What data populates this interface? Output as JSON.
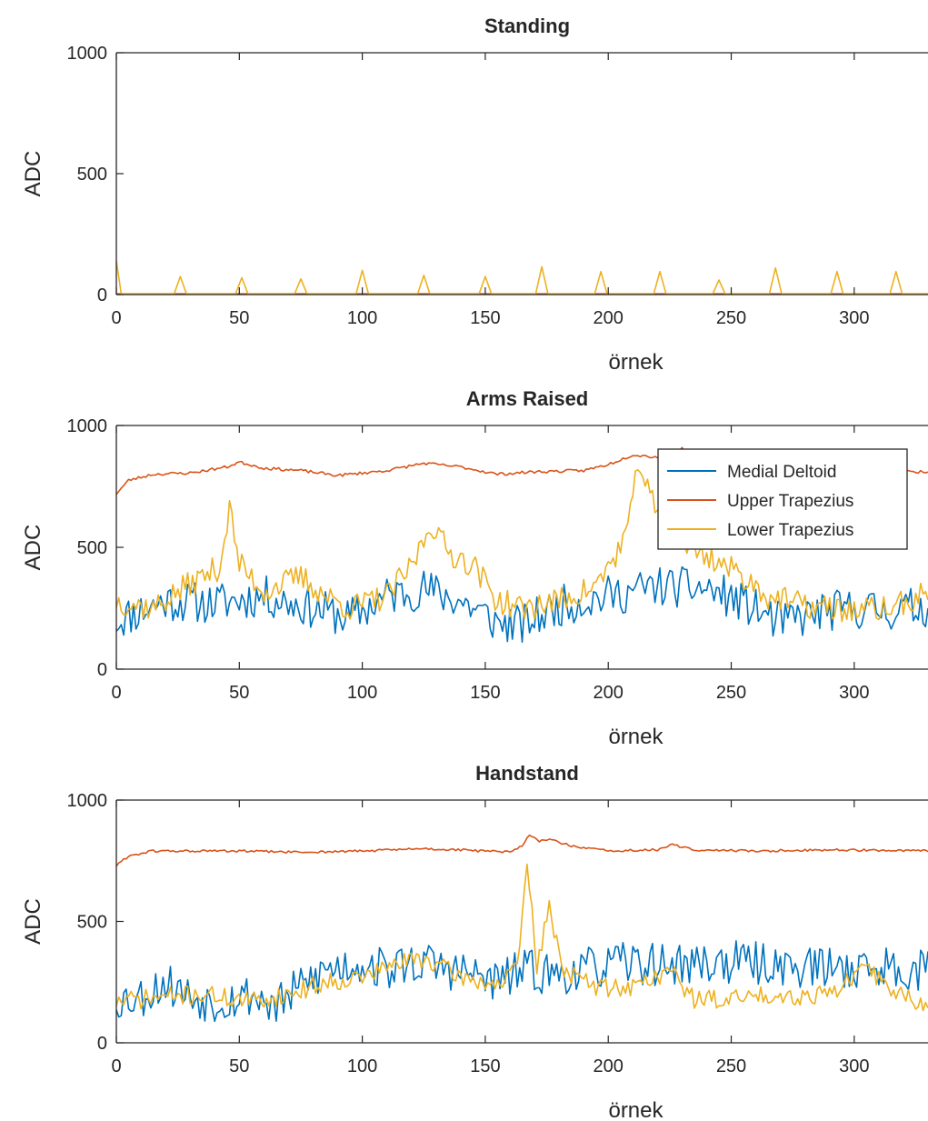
{
  "colors": {
    "medial_deltoid": "#0072BD",
    "upper_trapezius": "#D95319",
    "lower_trapezius": "#EDB120",
    "axis": "#262626"
  },
  "legend": {
    "placement": "top-right of second panel",
    "entries": [
      "Medial Deltoid",
      "Upper Trapezius",
      "Lower Trapezius"
    ]
  },
  "chart_data": [
    {
      "type": "line",
      "title": "Standing",
      "xlabel": "örnek",
      "ylabel": "ADC",
      "xlim": [
        0,
        330
      ],
      "ylim": [
        0,
        1000
      ],
      "xticks": [
        "0",
        "50",
        "100",
        "150",
        "200",
        "250",
        "300"
      ],
      "yticks": [
        "0",
        "500",
        "1000"
      ],
      "grid": false,
      "series": [
        {
          "name": "Medial Deltoid",
          "color": "#0072BD",
          "kind": "flat",
          "level": 2
        },
        {
          "name": "Upper Trapezius",
          "color": "#D95319",
          "kind": "flat",
          "level": 3
        },
        {
          "name": "Lower Trapezius",
          "color": "#EDB120",
          "kind": "spikes",
          "base": 3,
          "start_value": 140,
          "peaks": [
            [
              26,
              75
            ],
            [
              51,
              70
            ],
            [
              75,
              65
            ],
            [
              100,
              100
            ],
            [
              125,
              80
            ],
            [
              150,
              75
            ],
            [
              173,
              115
            ],
            [
              197,
              95
            ],
            [
              221,
              95
            ],
            [
              245,
              60
            ],
            [
              268,
              110
            ],
            [
              293,
              95
            ],
            [
              317,
              95
            ]
          ]
        }
      ]
    },
    {
      "type": "line",
      "title": "Arms Raised",
      "xlabel": "örnek",
      "ylabel": "ADC",
      "xlim": [
        0,
        330
      ],
      "ylim": [
        0,
        1000
      ],
      "xticks": [
        "0",
        "50",
        "100",
        "150",
        "200",
        "250",
        "300"
      ],
      "yticks": [
        "0",
        "500",
        "1000"
      ],
      "grid": false,
      "series": [
        {
          "name": "Medial Deltoid",
          "color": "#0072BD",
          "kind": "noisy",
          "amp": 85,
          "seed": 11,
          "anchors": [
            [
              0,
              200
            ],
            [
              20,
              280
            ],
            [
              40,
              270
            ],
            [
              60,
              300
            ],
            [
              80,
              250
            ],
            [
              95,
              210
            ],
            [
              110,
              300
            ],
            [
              125,
              330
            ],
            [
              140,
              280
            ],
            [
              155,
              190
            ],
            [
              165,
              180
            ],
            [
              180,
              260
            ],
            [
              200,
              300
            ],
            [
              220,
              340
            ],
            [
              240,
              330
            ],
            [
              255,
              270
            ],
            [
              270,
              190
            ],
            [
              285,
              230
            ],
            [
              300,
              250
            ],
            [
              315,
              240
            ],
            [
              330,
              260
            ]
          ]
        },
        {
          "name": "Upper Trapezius",
          "color": "#D95319",
          "kind": "noisy",
          "amp": 6,
          "seed": 23,
          "anchors": [
            [
              0,
              720
            ],
            [
              5,
              775
            ],
            [
              15,
              800
            ],
            [
              30,
              805
            ],
            [
              45,
              830
            ],
            [
              50,
              850
            ],
            [
              60,
              825
            ],
            [
              75,
              815
            ],
            [
              90,
              795
            ],
            [
              110,
              815
            ],
            [
              125,
              845
            ],
            [
              140,
              830
            ],
            [
              155,
              800
            ],
            [
              170,
              810
            ],
            [
              190,
              815
            ],
            [
              200,
              840
            ],
            [
              210,
              880
            ],
            [
              220,
              870
            ],
            [
              230,
              905
            ],
            [
              240,
              830
            ],
            [
              255,
              810
            ],
            [
              280,
              800
            ],
            [
              310,
              810
            ],
            [
              330,
              810
            ]
          ]
        },
        {
          "name": "Lower Trapezius",
          "color": "#EDB120",
          "kind": "noisy",
          "amp": 55,
          "seed": 37,
          "anchors": [
            [
              0,
              280
            ],
            [
              15,
              250
            ],
            [
              30,
              350
            ],
            [
              42,
              420
            ],
            [
              46,
              660
            ],
            [
              50,
              430
            ],
            [
              60,
              320
            ],
            [
              75,
              380
            ],
            [
              85,
              300
            ],
            [
              95,
              250
            ],
            [
              110,
              300
            ],
            [
              120,
              420
            ],
            [
              128,
              600
            ],
            [
              135,
              480
            ],
            [
              145,
              430
            ],
            [
              155,
              280
            ],
            [
              165,
              250
            ],
            [
              180,
              280
            ],
            [
              195,
              340
            ],
            [
              205,
              500
            ],
            [
              210,
              660
            ],
            [
              212,
              870
            ],
            [
              217,
              700
            ],
            [
              225,
              560
            ],
            [
              235,
              490
            ],
            [
              245,
              440
            ],
            [
              255,
              380
            ],
            [
              265,
              300
            ],
            [
              280,
              260
            ],
            [
              300,
              240
            ],
            [
              315,
              250
            ],
            [
              330,
              310
            ]
          ]
        }
      ]
    },
    {
      "type": "line",
      "title": "Handstand",
      "xlabel": "örnek",
      "ylabel": "ADC",
      "xlim": [
        0,
        330
      ],
      "ylim": [
        0,
        1000
      ],
      "xticks": [
        "0",
        "50",
        "100",
        "150",
        "200",
        "250",
        "300"
      ],
      "yticks": [
        "0",
        "500",
        "1000"
      ],
      "grid": false,
      "series": [
        {
          "name": "Medial Deltoid",
          "color": "#0072BD",
          "kind": "noisy",
          "amp": 90,
          "seed": 53,
          "anchors": [
            [
              0,
              180
            ],
            [
              10,
              190
            ],
            [
              20,
              250
            ],
            [
              30,
              190
            ],
            [
              40,
              170
            ],
            [
              55,
              200
            ],
            [
              65,
              150
            ],
            [
              75,
              230
            ],
            [
              85,
              300
            ],
            [
              100,
              330
            ],
            [
              110,
              300
            ],
            [
              120,
              330
            ],
            [
              130,
              320
            ],
            [
              145,
              280
            ],
            [
              155,
              250
            ],
            [
              165,
              300
            ],
            [
              180,
              280
            ],
            [
              195,
              310
            ],
            [
              210,
              330
            ],
            [
              225,
              320
            ],
            [
              240,
              330
            ],
            [
              255,
              330
            ],
            [
              270,
              320
            ],
            [
              285,
              310
            ],
            [
              300,
              310
            ],
            [
              315,
              310
            ],
            [
              330,
              300
            ]
          ]
        },
        {
          "name": "Upper Trapezius",
          "color": "#D95319",
          "kind": "noisy",
          "amp": 5,
          "seed": 61,
          "anchors": [
            [
              0,
              730
            ],
            [
              5,
              770
            ],
            [
              15,
              790
            ],
            [
              50,
              790
            ],
            [
              75,
              785
            ],
            [
              100,
              790
            ],
            [
              125,
              800
            ],
            [
              150,
              790
            ],
            [
              160,
              785
            ],
            [
              165,
              810
            ],
            [
              168,
              860
            ],
            [
              172,
              830
            ],
            [
              176,
              840
            ],
            [
              185,
              810
            ],
            [
              200,
              790
            ],
            [
              220,
              795
            ],
            [
              226,
              815
            ],
            [
              235,
              795
            ],
            [
              260,
              790
            ],
            [
              290,
              795
            ],
            [
              330,
              790
            ]
          ]
        },
        {
          "name": "Lower Trapezius",
          "color": "#EDB120",
          "kind": "noisy",
          "amp": 40,
          "seed": 71,
          "anchors": [
            [
              0,
              170
            ],
            [
              10,
              180
            ],
            [
              20,
              190
            ],
            [
              35,
              200
            ],
            [
              55,
              170
            ],
            [
              70,
              200
            ],
            [
              85,
              250
            ],
            [
              100,
              270
            ],
            [
              115,
              330
            ],
            [
              125,
              350
            ],
            [
              140,
              270
            ],
            [
              155,
              240
            ],
            [
              163,
              300
            ],
            [
              167,
              740
            ],
            [
              171,
              320
            ],
            [
              176,
              550
            ],
            [
              182,
              300
            ],
            [
              195,
              230
            ],
            [
              210,
              230
            ],
            [
              225,
              300
            ],
            [
              235,
              180
            ],
            [
              250,
              180
            ],
            [
              265,
              200
            ],
            [
              280,
              190
            ],
            [
              295,
              230
            ],
            [
              305,
              310
            ],
            [
              315,
              220
            ],
            [
              330,
              150
            ]
          ]
        }
      ]
    }
  ]
}
